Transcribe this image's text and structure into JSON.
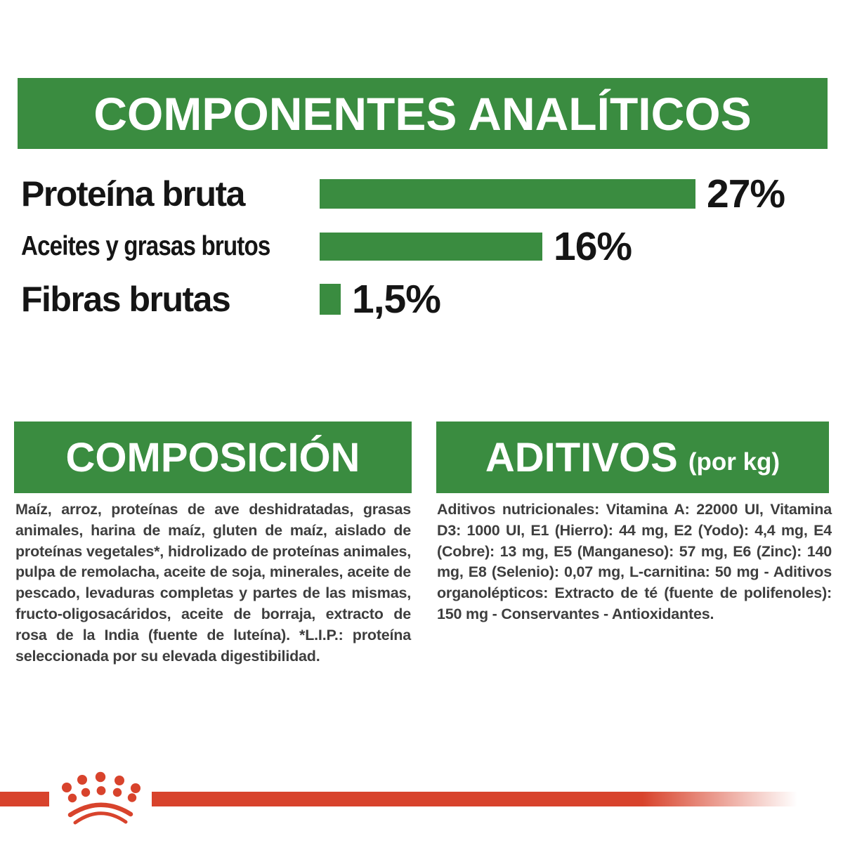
{
  "colors": {
    "green": "#3a8c40",
    "red": "#d8432c",
    "body_text": "#3e3e3e",
    "label_text": "#151515",
    "banner_text": "#ffffff"
  },
  "header": {
    "title": "COMPONENTES ANALÍTICOS"
  },
  "chart_data": {
    "type": "bar",
    "orientation": "horizontal",
    "title": "COMPONENTES ANALÍTICOS",
    "categories": [
      "Proteína bruta",
      "Aceites y grasas brutos",
      "Fibras brutas"
    ],
    "values": [
      27,
      16,
      1.5
    ],
    "value_labels": [
      "27%",
      "16%",
      "1,5%"
    ],
    "unit": "%",
    "xlim": [
      0,
      30
    ],
    "grid": false,
    "value_label_position": "end-of-bar",
    "bar_color": "#3a8c40"
  },
  "composition": {
    "title": "COMPOSICIÓN",
    "body": "Maíz, arroz, proteínas de ave deshidratadas, grasas animales, harina de maíz, gluten de maíz, aislado de proteínas vegetales*, hidrolizado de proteínas animales, pulpa de remolacha, aceite de soja, minerales, aceite de pescado, levaduras completas y partes de las mismas, fructo-oligosacáridos, aceite de borraja, extracto de rosa de la India (fuente de luteína). *L.I.P.: proteína seleccionada por su elevada digestibilidad."
  },
  "additives": {
    "title": "ADITIVOS",
    "subtitle": "(por kg)",
    "body": "Aditivos nutricionales: Vitamina A: 22000 UI, Vitamina D3: 1000 UI, E1 (Hierro): 44 mg, E2 (Yodo): 4,4 mg, E4 (Cobre): 13 mg, E5 (Manganeso): 57 mg, E6 (Zinc): 140 mg, E8 (Selenio): 0,07 mg, L-carnitina: 50 mg - Aditivos organolépticos: Extracto de té (fuente de polifenoles): 150 mg - Conservantes - Antioxidantes."
  },
  "footer": {
    "logo": "royal-canin-crown"
  }
}
